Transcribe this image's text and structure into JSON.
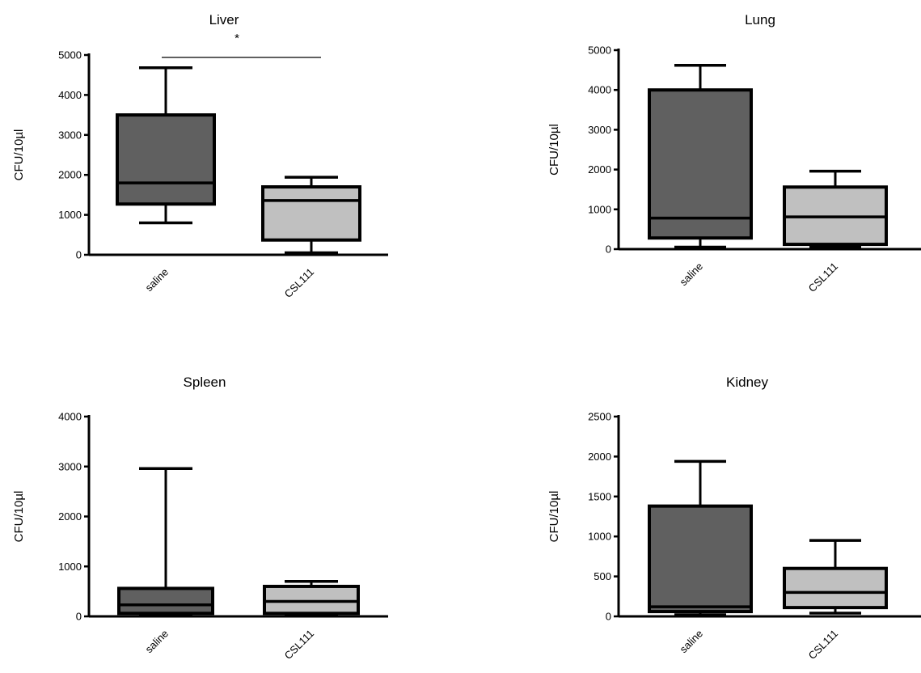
{
  "chart_data": [
    {
      "type": "box",
      "title": "Liver",
      "ylabel": "CFU/10µl",
      "categories": [
        "saline",
        "CSL111"
      ],
      "ylim": [
        0,
        5000
      ],
      "yticks": [
        "0",
        "1000",
        "2000",
        "3000",
        "4000",
        "5000"
      ],
      "boxes": [
        {
          "category": "saline",
          "min": 800,
          "q1": 1270,
          "median": 1800,
          "q3": 3500,
          "max": 4680,
          "color": "#606060"
        },
        {
          "category": "CSL111",
          "min": 50,
          "q1": 370,
          "median": 1360,
          "q3": 1700,
          "max": 1940,
          "color": "#c0c0c0"
        }
      ],
      "annotations": [
        {
          "text": "*",
          "type": "significance-bracket",
          "between": [
            "saline",
            "CSL111"
          ],
          "y": 4950
        }
      ]
    },
    {
      "type": "box",
      "title": "Lung",
      "ylabel": "CFU/10µl",
      "categories": [
        "saline",
        "CSL111"
      ],
      "ylim": [
        0,
        5000
      ],
      "yticks": [
        "0",
        "1000",
        "2000",
        "3000",
        "4000",
        "5000"
      ],
      "boxes": [
        {
          "category": "saline",
          "min": 50,
          "q1": 280,
          "median": 780,
          "q3": 4000,
          "max": 4620,
          "color": "#606060"
        },
        {
          "category": "CSL111",
          "min": 50,
          "q1": 120,
          "median": 810,
          "q3": 1560,
          "max": 1960,
          "color": "#c0c0c0"
        }
      ],
      "annotations": []
    },
    {
      "type": "box",
      "title": "Spleen",
      "ylabel": "CFU/10µl",
      "categories": [
        "saline",
        "CSL111"
      ],
      "ylim": [
        0,
        4000
      ],
      "yticks": [
        "0",
        "1000",
        "2000",
        "3000",
        "4000"
      ],
      "boxes": [
        {
          "category": "saline",
          "min": 20,
          "q1": 60,
          "median": 230,
          "q3": 560,
          "max": 2960,
          "color": "#606060"
        },
        {
          "category": "CSL111",
          "min": 20,
          "q1": 60,
          "median": 300,
          "q3": 600,
          "max": 700,
          "color": "#c0c0c0"
        }
      ],
      "annotations": []
    },
    {
      "type": "box",
      "title": "Kidney",
      "ylabel": "CFU/10µl",
      "categories": [
        "saline",
        "CSL111"
      ],
      "ylim": [
        0,
        2500
      ],
      "yticks": [
        "0",
        "500",
        "1000",
        "1500",
        "2000",
        "2500"
      ],
      "boxes": [
        {
          "category": "saline",
          "min": 20,
          "q1": 60,
          "median": 120,
          "q3": 1380,
          "max": 1940,
          "color": "#606060"
        },
        {
          "category": "CSL111",
          "min": 40,
          "q1": 110,
          "median": 300,
          "q3": 600,
          "max": 950,
          "color": "#c0c0c0"
        }
      ],
      "annotations": []
    }
  ]
}
